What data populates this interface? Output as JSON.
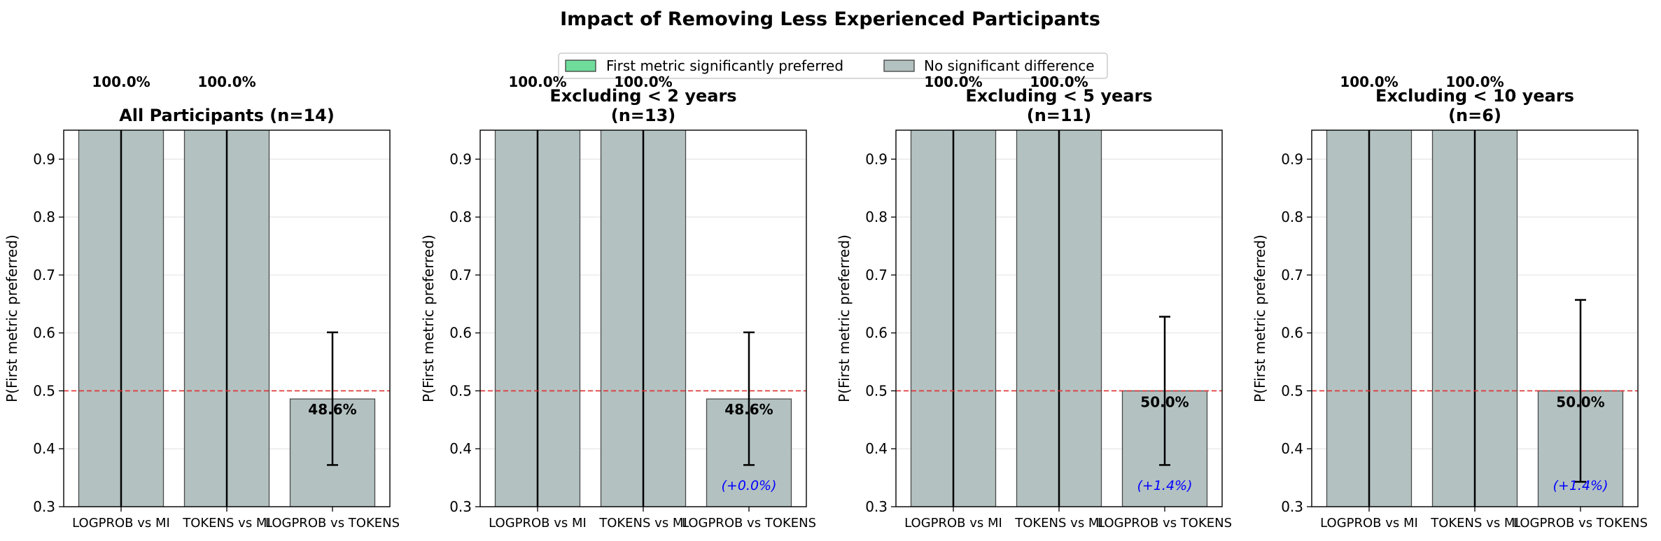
{
  "figure": {
    "title": "Impact of Removing Less Experienced Participants",
    "legend": {
      "placement": "top-center",
      "entries": [
        {
          "label": "First metric significantly preferred",
          "color": "#6fdc9c"
        },
        {
          "label": "No significant difference",
          "color": "#b3c1c1"
        }
      ]
    }
  },
  "colors": {
    "bar": "#b3c1c1",
    "bar_edge": "#4a4a4a",
    "reference_line": "#e03030",
    "delta_text": "#0000ff"
  },
  "chart_data": [
    {
      "type": "bar",
      "title": "All Participants (n=14)",
      "ylabel": "P(First metric preferred)",
      "ylim": [
        0.3,
        0.95
      ],
      "yticks": [
        "0.3",
        "0.4",
        "0.5",
        "0.6",
        "0.7",
        "0.8",
        "0.9"
      ],
      "reference_line": 0.5,
      "grid": "y",
      "categories": [
        "LOGPROB vs MI",
        "TOKENS vs MI",
        "LOGPROB vs TOKENS"
      ],
      "values": [
        1.0,
        1.0,
        0.486
      ],
      "error_low": [
        0.3,
        0.3,
        0.372
      ],
      "error_high": [
        1.0,
        1.0,
        0.601
      ],
      "value_labels": [
        "100.0%",
        "100.0%",
        "48.6%"
      ],
      "delta_labels": [
        "",
        "",
        ""
      ]
    },
    {
      "type": "bar",
      "title": "Excluding < 2 years\n(n=13)",
      "ylabel": "P(First metric preferred)",
      "ylim": [
        0.3,
        0.95
      ],
      "yticks": [
        "0.3",
        "0.4",
        "0.5",
        "0.6",
        "0.7",
        "0.8",
        "0.9"
      ],
      "reference_line": 0.5,
      "grid": "y",
      "categories": [
        "LOGPROB vs MI",
        "TOKENS vs MI",
        "LOGPROB vs TOKENS"
      ],
      "values": [
        1.0,
        1.0,
        0.486
      ],
      "error_low": [
        0.3,
        0.3,
        0.372
      ],
      "error_high": [
        1.0,
        1.0,
        0.601
      ],
      "value_labels": [
        "100.0%",
        "100.0%",
        "48.6%"
      ],
      "delta_labels": [
        "",
        "",
        "(+0.0%)"
      ]
    },
    {
      "type": "bar",
      "title": "Excluding < 5 years\n(n=11)",
      "ylabel": "P(First metric preferred)",
      "ylim": [
        0.3,
        0.95
      ],
      "yticks": [
        "0.3",
        "0.4",
        "0.5",
        "0.6",
        "0.7",
        "0.8",
        "0.9"
      ],
      "reference_line": 0.5,
      "grid": "y",
      "categories": [
        "LOGPROB vs MI",
        "TOKENS vs MI",
        "LOGPROB vs TOKENS"
      ],
      "values": [
        1.0,
        1.0,
        0.5
      ],
      "error_low": [
        0.3,
        0.3,
        0.372
      ],
      "error_high": [
        1.0,
        1.0,
        0.628
      ],
      "value_labels": [
        "100.0%",
        "100.0%",
        "50.0%"
      ],
      "delta_labels": [
        "",
        "",
        "(+1.4%)"
      ]
    },
    {
      "type": "bar",
      "title": "Excluding < 10 years\n(n=6)",
      "ylabel": "P(First metric preferred)",
      "ylim": [
        0.3,
        0.95
      ],
      "yticks": [
        "0.3",
        "0.4",
        "0.5",
        "0.6",
        "0.7",
        "0.8",
        "0.9"
      ],
      "reference_line": 0.5,
      "grid": "y",
      "categories": [
        "LOGPROB vs MI",
        "TOKENS vs MI",
        "LOGPROB vs TOKENS"
      ],
      "values": [
        1.0,
        1.0,
        0.5
      ],
      "error_low": [
        0.3,
        0.3,
        0.343
      ],
      "error_high": [
        1.0,
        1.0,
        0.657
      ],
      "value_labels": [
        "100.0%",
        "100.0%",
        "50.0%"
      ],
      "delta_labels": [
        "",
        "",
        "(+1.4%)"
      ]
    }
  ]
}
